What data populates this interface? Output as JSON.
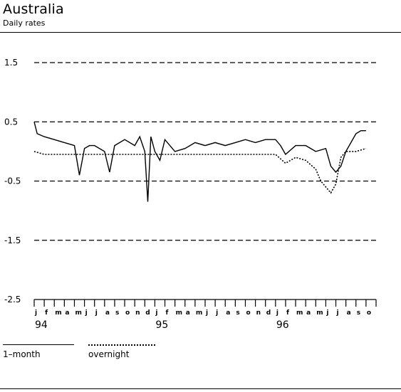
{
  "title": "Australia",
  "subtitle": "Daily rates",
  "legend": {
    "series_1": "1–month",
    "series_2": "overnight"
  },
  "chart_data": {
    "type": "line",
    "title": "Australia",
    "subtitle": "Daily rates",
    "xlabel": "",
    "ylabel": "",
    "ylim": [
      -2.5,
      1.5
    ],
    "yticks": [
      1.5,
      0.5,
      -0.5,
      -1.5,
      -2.5
    ],
    "ytick_labels": [
      "1.5",
      "0.5",
      "-0.5",
      "-1.5",
      "-2.5"
    ],
    "grid": "dashed horizontal at labelled ticks",
    "x_month_labels": [
      "j",
      "f",
      "m",
      "a",
      "m",
      "j",
      "j",
      "a",
      "s",
      "o",
      "n",
      "d",
      "j",
      "f",
      "m",
      "a",
      "m",
      "j",
      "j",
      "a",
      "s",
      "o",
      "n",
      "d",
      "j",
      "f",
      "m",
      "a",
      "m",
      "j",
      "j",
      "a",
      "s",
      "o"
    ],
    "x_year_labels": [
      {
        "label": "94",
        "month_index": 0
      },
      {
        "label": "95",
        "month_index": 12
      },
      {
        "label": "96",
        "month_index": 24
      }
    ],
    "legend_position": "bottom-left",
    "series": [
      {
        "name": "1–month",
        "style": "solid",
        "x_month": [
          0,
          0.3,
          1,
          2,
          3,
          4,
          4.5,
          5,
          5.5,
          6,
          7,
          7.5,
          8,
          9,
          10,
          10.5,
          11,
          11.3,
          11.6,
          12,
          12.5,
          13,
          14,
          15,
          16,
          17,
          18,
          19,
          20,
          21,
          22,
          23,
          24,
          24.5,
          25,
          26,
          27,
          28,
          29,
          29.5,
          30,
          30.5,
          31,
          32,
          32.5,
          33
        ],
        "values": [
          0.5,
          0.3,
          0.25,
          0.2,
          0.15,
          0.1,
          -0.4,
          0.05,
          0.1,
          0.1,
          0.0,
          -0.35,
          0.1,
          0.2,
          0.1,
          0.25,
          0.0,
          -0.85,
          0.25,
          0.0,
          -0.15,
          0.2,
          0.0,
          0.05,
          0.15,
          0.1,
          0.15,
          0.1,
          0.15,
          0.2,
          0.15,
          0.2,
          0.2,
          0.1,
          -0.05,
          0.1,
          0.1,
          0.0,
          0.05,
          -0.25,
          -0.35,
          -0.25,
          0.0,
          0.3,
          0.35,
          0.35
        ]
      },
      {
        "name": "overnight",
        "style": "dotted",
        "x_month": [
          0,
          1,
          2,
          3,
          4,
          5,
          6,
          7,
          8,
          9,
          10,
          11,
          12,
          13,
          14,
          15,
          16,
          17,
          18,
          19,
          20,
          21,
          22,
          23,
          24,
          25,
          26,
          27,
          28,
          28.5,
          29,
          29.5,
          30,
          30.5,
          31,
          32,
          33
        ],
        "values": [
          0.0,
          -0.05,
          -0.05,
          -0.05,
          -0.05,
          -0.05,
          -0.05,
          -0.05,
          -0.05,
          -0.05,
          -0.05,
          -0.05,
          -0.05,
          -0.05,
          -0.05,
          -0.05,
          -0.05,
          -0.05,
          -0.05,
          -0.05,
          -0.05,
          -0.05,
          -0.05,
          -0.05,
          -0.05,
          -0.2,
          -0.1,
          -0.15,
          -0.3,
          -0.5,
          -0.6,
          -0.7,
          -0.55,
          -0.1,
          0.0,
          0.0,
          0.05
        ]
      }
    ]
  }
}
